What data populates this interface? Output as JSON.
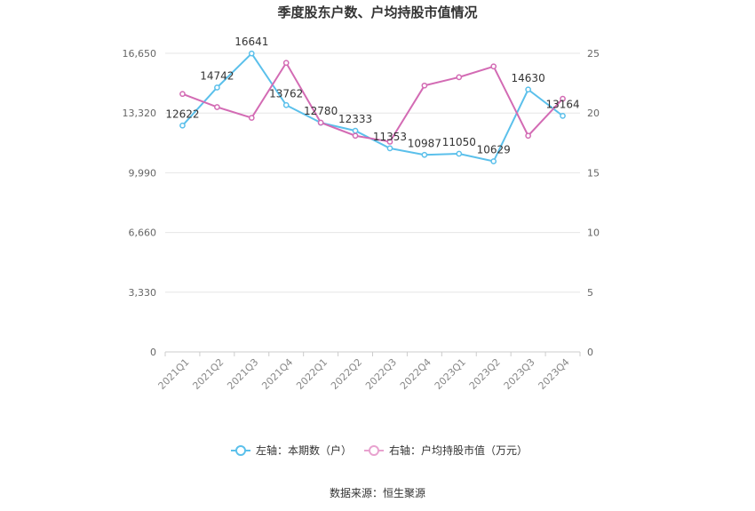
{
  "chart_data": {
    "type": "line",
    "title": "季度股东户数、户均持股市值情况",
    "categories": [
      "2021Q1",
      "2021Q2",
      "2021Q3",
      "2021Q4",
      "2022Q1",
      "2022Q2",
      "2022Q3",
      "2022Q4",
      "2023Q1",
      "2023Q2",
      "2023Q3",
      "2023Q4"
    ],
    "left_axis": {
      "ticks": [
        "0",
        "3,330",
        "6,660",
        "9,990",
        "13,320",
        "16,650"
      ],
      "ylim": [
        0,
        16650
      ]
    },
    "right_axis": {
      "ticks": [
        "0",
        "5",
        "10",
        "15",
        "20",
        "25"
      ],
      "ylim": [
        0,
        25
      ]
    },
    "series": [
      {
        "name": "左轴：本期数（户）",
        "axis": "left",
        "color": "#5bc0eb",
        "values": [
          12622,
          14742,
          16641,
          13762,
          12780,
          12333,
          11353,
          10987,
          11050,
          10629,
          14630,
          13164
        ],
        "labels": [
          "12622",
          "14742",
          "16641",
          "13762",
          "12780",
          "12333",
          "11353",
          "10987",
          "11050",
          "10629",
          "14630",
          "13164"
        ]
      },
      {
        "name": "右轴：户均持股市值（万元）",
        "axis": "right",
        "color": "#d36bb4",
        "legend_color": "#e8a2cf",
        "values": [
          21.6,
          20.5,
          19.6,
          24.2,
          19.2,
          18.1,
          17.6,
          22.3,
          23.0,
          23.9,
          18.1,
          21.2
        ]
      }
    ],
    "legend_position": "bottom",
    "grid": true
  },
  "footer": {
    "source": "数据来源：恒生聚源"
  }
}
